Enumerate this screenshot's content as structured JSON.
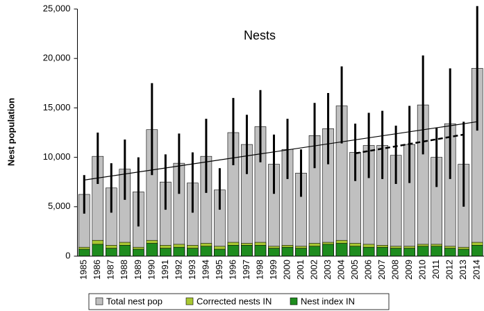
{
  "chart_data": {
    "type": "bar",
    "title": "Nests",
    "y_label": "Nest population",
    "categories": [
      "1985",
      "1986",
      "1987",
      "1988",
      "1989",
      "1990",
      "1991",
      "1992",
      "1993",
      "1994",
      "1995",
      "1996",
      "1997",
      "1998",
      "1999",
      "2000",
      "2001",
      "2002",
      "2003",
      "2004",
      "2005",
      "2006",
      "2007",
      "2008",
      "2009",
      "2010",
      "2011",
      "2012",
      "2013",
      "2014"
    ],
    "series": [
      {
        "name": "Total nest pop",
        "color": "#c0c0c0",
        "values": [
          6250,
          10100,
          6900,
          8800,
          6500,
          12800,
          7500,
          9400,
          7400,
          10100,
          6700,
          12500,
          11300,
          13100,
          9300,
          10800,
          8400,
          12200,
          12900,
          15200,
          10500,
          11200,
          11200,
          10200,
          11300,
          15300,
          10000,
          13400,
          9300,
          19000
        ],
        "error_low": [
          4300,
          7300,
          4400,
          5700,
          3000,
          8200,
          4700,
          6300,
          4400,
          6400,
          4700,
          9200,
          8300,
          9500,
          6300,
          7800,
          6000,
          8900,
          9300,
          11400,
          7600,
          7900,
          7800,
          7300,
          7400,
          10300,
          7000,
          7800,
          5000,
          12700
        ],
        "error_high": [
          8200,
          12500,
          9400,
          11800,
          10000,
          17500,
          10300,
          12400,
          10500,
          13900,
          8900,
          16000,
          14300,
          16800,
          12300,
          13900,
          10800,
          15500,
          16500,
          19200,
          13400,
          14500,
          14700,
          13200,
          15200,
          20300,
          13000,
          19000,
          13600,
          25300
        ]
      },
      {
        "name": "Corrected nests IN",
        "color": "#a8c832",
        "values": [
          900,
          1600,
          1100,
          1400,
          900,
          1600,
          1100,
          1200,
          1100,
          1300,
          1000,
          1400,
          1300,
          1400,
          1000,
          1100,
          1000,
          1300,
          1400,
          1600,
          1300,
          1200,
          1100,
          1000,
          1000,
          1200,
          1200,
          1000,
          900,
          1400
        ]
      },
      {
        "name": "Nest index IN",
        "color": "#1e8c1e",
        "values": [
          700,
          1200,
          800,
          1100,
          700,
          1300,
          800,
          900,
          800,
          1000,
          700,
          1100,
          1100,
          1100,
          800,
          900,
          800,
          1000,
          1200,
          1300,
          1000,
          900,
          900,
          800,
          800,
          1000,
          1000,
          800,
          700,
          1100
        ]
      }
    ],
    "trend_lines": [
      {
        "x": [
          1985,
          2014
        ],
        "values": [
          7700,
          13600
        ],
        "style": "solid"
      },
      {
        "x": [
          2005,
          2013
        ],
        "values": [
          10400,
          12300
        ],
        "style": "dashed"
      }
    ],
    "ylim": [
      0,
      25000
    ],
    "yticks": [
      {
        "value": 0,
        "label": "0"
      },
      {
        "value": 5000,
        "label": "5,000"
      },
      {
        "value": 10000,
        "label": "10,000"
      },
      {
        "value": 15000,
        "label": "15,000"
      },
      {
        "value": 20000,
        "label": "20,000"
      },
      {
        "value": 25000,
        "label": "25,000"
      }
    ],
    "legend": "bottom"
  }
}
